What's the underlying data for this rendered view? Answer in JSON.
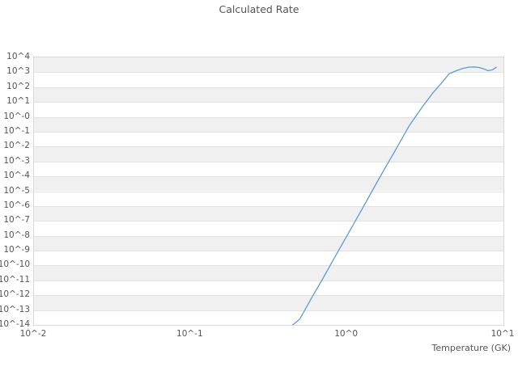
{
  "chart_data": {
    "type": "line",
    "title": "Calculated Rate",
    "xlabel": "Temperature (GK)",
    "ylabel": "",
    "x_scale": "log",
    "y_scale": "log",
    "xlim_log": [
      -2,
      1
    ],
    "ylim_log": [
      -14,
      4
    ],
    "x_ticks": [
      "10^-2",
      "10^-1",
      "10^0",
      "10^1"
    ],
    "y_ticks": [
      "10^4",
      "10^3",
      "10^2",
      "10^1",
      "10^-0",
      "10^-1",
      "10^-2",
      "10^-3",
      "10^-4",
      "10^-5",
      "10^-6",
      "10^-7",
      "10^-8",
      "10^-9",
      "10^-10",
      "10^-11",
      "10^-12",
      "10^-13",
      "10^-14"
    ],
    "grid": "horizontal-decade-bands",
    "legend": "none",
    "series": [
      {
        "name": "calculated-rate",
        "color": "#5b9cd6",
        "points_temperature_gk_vs_log10_rate": [
          [
            0.45,
            -14.0
          ],
          [
            0.5,
            -13.6
          ],
          [
            0.6,
            -12.1
          ],
          [
            0.7,
            -10.9
          ],
          [
            0.8,
            -9.8
          ],
          [
            0.9,
            -8.85
          ],
          [
            1.0,
            -8.0
          ],
          [
            1.25,
            -6.2
          ],
          [
            1.5,
            -4.7
          ],
          [
            1.75,
            -3.45
          ],
          [
            2.0,
            -2.4
          ],
          [
            2.5,
            -0.6
          ],
          [
            3.0,
            0.6
          ],
          [
            3.5,
            1.55
          ],
          [
            4.0,
            2.25
          ],
          [
            4.5,
            2.9
          ],
          [
            5.0,
            3.1
          ],
          [
            5.5,
            3.26
          ],
          [
            6.0,
            3.34
          ],
          [
            6.5,
            3.36
          ],
          [
            7.0,
            3.32
          ],
          [
            7.5,
            3.22
          ],
          [
            8.0,
            3.1
          ],
          [
            8.5,
            3.17
          ],
          [
            9.0,
            3.33
          ]
        ]
      }
    ]
  },
  "colors": {
    "line": "#5b9cd6",
    "band_grey": "#f0f0f0",
    "gridline": "#e3e3e3",
    "plot_border": "#d9d9d9",
    "text": "#545454",
    "background": "#ffffff"
  }
}
